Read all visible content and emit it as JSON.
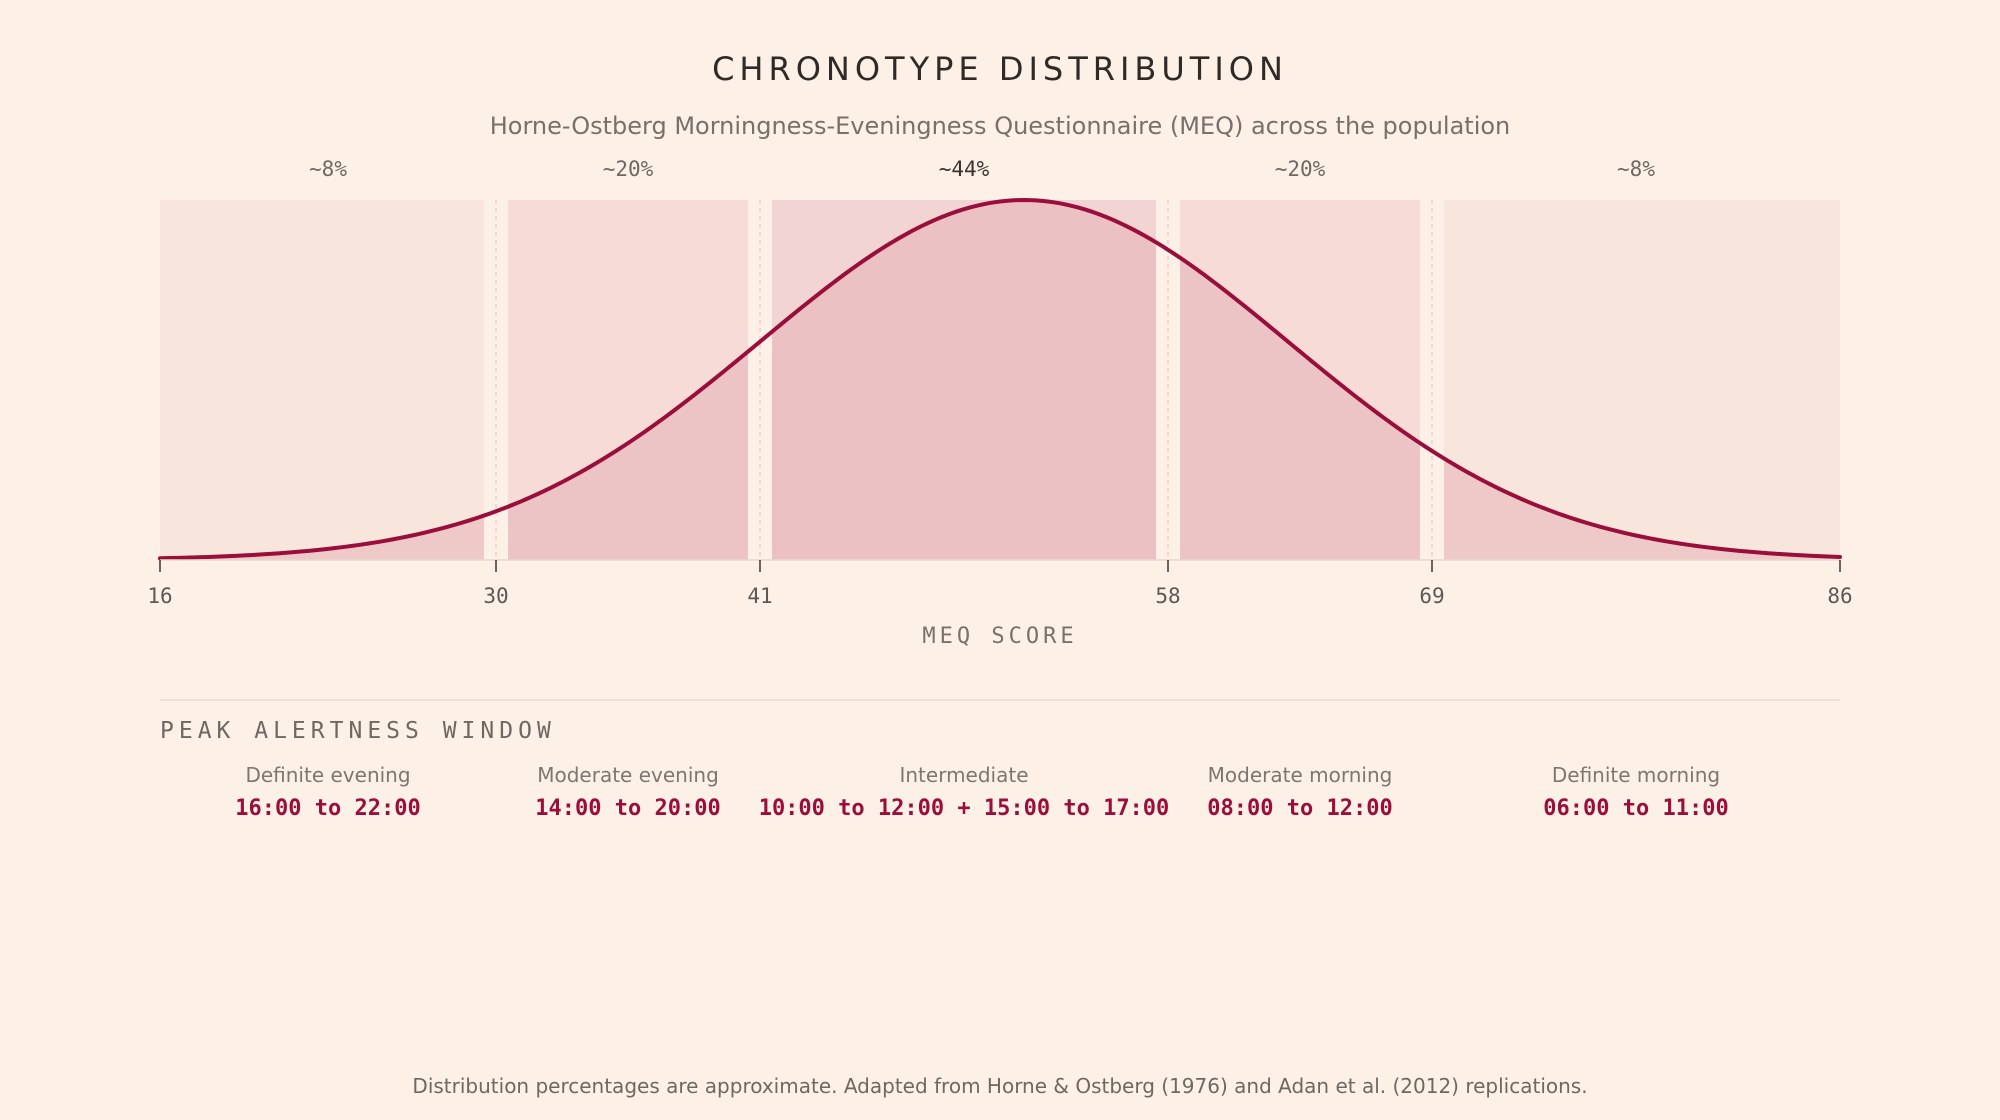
{
  "title": "CHRONOTYPE DISTRIBUTION",
  "subtitle": "Horne-Ostberg Morningness-Eveningness Questionnaire (MEQ) across the population",
  "colors": {
    "curve": "#9a0e3b",
    "background": "#fdf1e7",
    "band_light": "#f8e6dc",
    "band_mid": "#f6dbd7",
    "band_peak": "#f1d4d3",
    "curve_fill": "#e6b0b6"
  },
  "chart_data": {
    "type": "area",
    "xlabel": "MEQ SCORE",
    "xlim": [
      16,
      86
    ],
    "ticks": [
      "16",
      "30",
      "41",
      "58",
      "69",
      "86"
    ],
    "tick_values": [
      16,
      30,
      41,
      58,
      69,
      86
    ],
    "distribution": {
      "kind": "normal",
      "mean": 52,
      "sd": 11
    },
    "bands": [
      {
        "label": "Definite evening",
        "range": [
          16,
          30
        ],
        "share": "~8%"
      },
      {
        "label": "Moderate evening",
        "range": [
          30,
          41
        ],
        "share": "~20%"
      },
      {
        "label": "Intermediate",
        "range": [
          41,
          58
        ],
        "share": "~44%"
      },
      {
        "label": "Moderate morning",
        "range": [
          58,
          69
        ],
        "share": "~20%"
      },
      {
        "label": "Definite morning",
        "range": [
          69,
          86
        ],
        "share": "~8%"
      }
    ]
  },
  "peak_section": {
    "title": "PEAK ALERTNESS WINDOW",
    "windows": [
      {
        "name": "Definite evening",
        "time": "16:00 to 22:00"
      },
      {
        "name": "Moderate evening",
        "time": "14:00 to 20:00"
      },
      {
        "name": "Intermediate",
        "time": "10:00 to 12:00 + 15:00 to 17:00"
      },
      {
        "name": "Moderate morning",
        "time": "08:00 to 12:00"
      },
      {
        "name": "Definite morning",
        "time": "06:00 to 11:00"
      }
    ]
  },
  "footer": "Distribution percentages are approximate. Adapted from Horne & Ostberg (1976) and Adan et al. (2012) replications."
}
